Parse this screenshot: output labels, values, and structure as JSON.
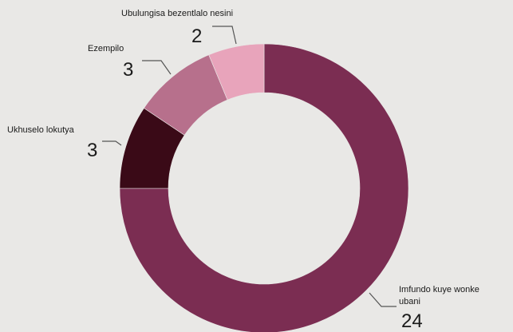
{
  "chart_data": {
    "type": "pie",
    "donut": true,
    "legend": "none",
    "categories": [
      "Imfundo kuye wonke ubani",
      "Ukhuselo lokutya",
      "Ezempilo",
      "Ubulungisa bezentlalo nesini"
    ],
    "values": [
      24,
      3,
      3,
      2
    ],
    "colors": [
      "#7b2d52",
      "#3a0a17",
      "#b7708c",
      "#e8a4bb"
    ],
    "slices": [
      {
        "label_lines": [
          "Imfundo kuye wonke",
          "ubani"
        ],
        "value": "24"
      },
      {
        "label_lines": [
          "Ukhuselo lokutya"
        ],
        "value": "3"
      },
      {
        "label_lines": [
          "Ezempilo"
        ],
        "value": "3"
      },
      {
        "label_lines": [
          "Ubulungisa bezentlalo nesini"
        ],
        "value": "2"
      }
    ]
  }
}
